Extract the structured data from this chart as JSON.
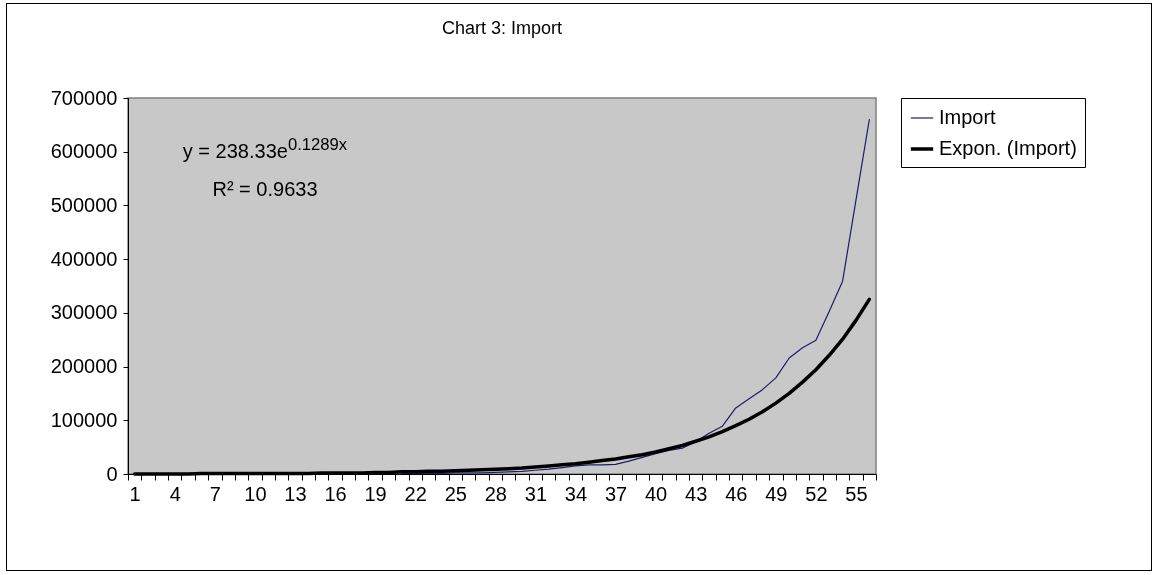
{
  "chart_data": {
    "type": "line",
    "title": "Chart 3: Import",
    "categories": [
      "1",
      null,
      null,
      "4",
      null,
      null,
      "7",
      null,
      null,
      "10",
      null,
      null,
      "13",
      null,
      null,
      "16",
      null,
      null,
      "19",
      null,
      null,
      "22",
      null,
      null,
      "25",
      null,
      null,
      "28",
      null,
      null,
      "31",
      null,
      null,
      "34",
      null,
      null,
      "37",
      null,
      null,
      "40",
      null,
      null,
      "43",
      null,
      null,
      "46",
      null,
      null,
      "49",
      null,
      null,
      "52",
      null,
      null,
      "55",
      null
    ],
    "series": [
      {
        "name": "Import",
        "color": "#1c1c6c",
        "values": [
          null,
          null,
          null,
          null,
          null,
          null,
          null,
          null,
          null,
          null,
          null,
          null,
          null,
          null,
          null,
          null,
          null,
          null,
          null,
          null,
          1000,
          1000,
          1000,
          1000,
          2000,
          2000,
          2000,
          3000,
          4000,
          5000,
          7000,
          9000,
          12000,
          15000,
          17000,
          17000,
          18000,
          24000,
          31000,
          38000,
          44000,
          48000,
          60000,
          76000,
          89000,
          123000,
          140000,
          157000,
          179000,
          216000,
          235000,
          249000,
          303000,
          359000,
          510000,
          660000
        ]
      },
      {
        "name": "Expon. (Import)",
        "color": "#000000",
        "values": [
          0,
          0,
          0,
          0,
          0,
          1000,
          1000,
          1000,
          1000,
          1000,
          1000,
          1000,
          1000,
          1000,
          2000,
          2000,
          2000,
          2000,
          3000,
          3000,
          4000,
          4000,
          5000,
          5000,
          6000,
          7000,
          8000,
          9000,
          10000,
          11000,
          13000,
          15000,
          17000,
          19000,
          22000,
          25000,
          28000,
          32000,
          36000,
          41000,
          47000,
          53000,
          61000,
          69000,
          79000,
          90000,
          102000,
          116000,
          132000,
          150000,
          171000,
          194000,
          221000,
          251000,
          286000,
          325000
        ]
      }
    ],
    "ylim": [
      0,
      700000
    ],
    "yticks": [
      0,
      100000,
      200000,
      300000,
      400000,
      500000,
      600000,
      700000
    ],
    "grid": false,
    "legend": "right",
    "annotations": [
      "y = 238.33e$^{0.1289x}$",
      "R² = 0.9633"
    ]
  }
}
